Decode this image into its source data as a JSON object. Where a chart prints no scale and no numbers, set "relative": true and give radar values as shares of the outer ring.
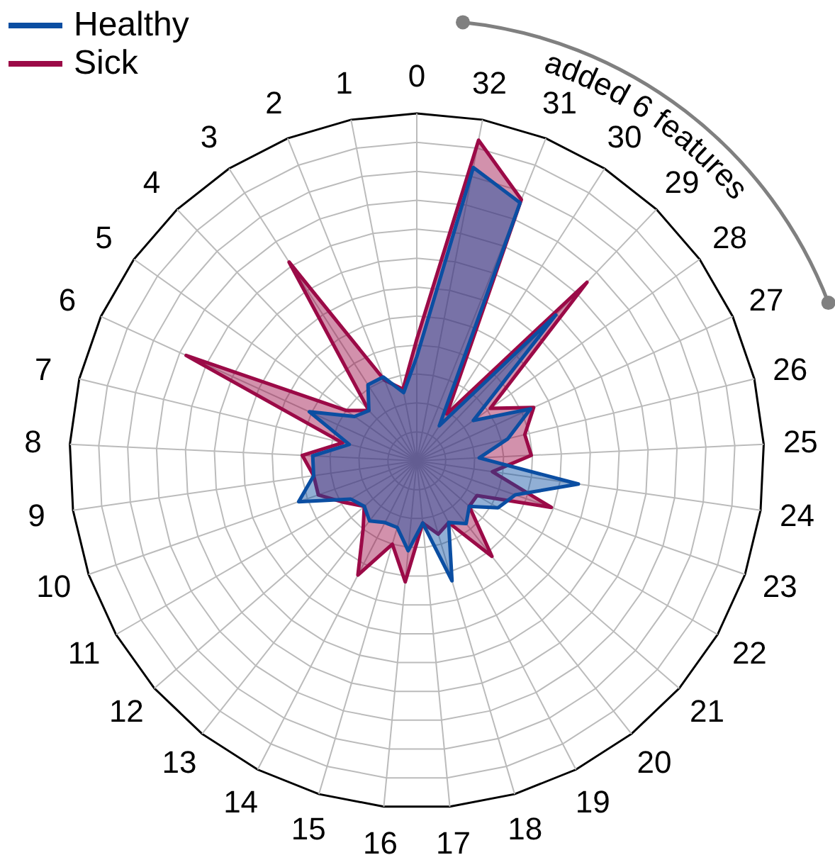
{
  "chart_data": {
    "type": "radar",
    "relative": true,
    "legend": "top left",
    "grid": true,
    "categories": [
      "0",
      "32",
      "31",
      "30",
      "29",
      "28",
      "27",
      "26",
      "25",
      "24",
      "23",
      "22",
      "21",
      "20",
      "19",
      "18",
      "17",
      "16",
      "15",
      "14",
      "13",
      "12",
      "11",
      "10",
      "9",
      "8",
      "7",
      "6",
      "5",
      "4",
      "3",
      "2",
      "1"
    ],
    "series": [
      {
        "name": "Healthy",
        "color": "#0b4ea2",
        "values": [
          0.3,
          0.86,
          0.8,
          0.12,
          0.58,
          0.2,
          0.36,
          0.27,
          0.18,
          0.47,
          0.3,
          0.27,
          0.2,
          0.23,
          0.2,
          0.36,
          0.18,
          0.26,
          0.2,
          0.2,
          0.22,
          0.2,
          0.22,
          0.36,
          0.3,
          0.3,
          0.2,
          0.34,
          0.22,
          0.2,
          0.26,
          0.26,
          0.2
        ]
      },
      {
        "name": "Sick",
        "color": "#9b0a47",
        "values": [
          0.35,
          0.94,
          0.81,
          0.16,
          0.71,
          0.26,
          0.37,
          0.32,
          0.33,
          0.22,
          0.41,
          0.2,
          0.2,
          0.35,
          0.2,
          0.22,
          0.18,
          0.35,
          0.25,
          0.37,
          0.25,
          0.2,
          0.24,
          0.3,
          0.3,
          0.33,
          0.22,
          0.73,
          0.25,
          0.2,
          0.68,
          0.25,
          0.21
        ]
      }
    ],
    "annotations": [
      "added 6 features"
    ]
  }
}
